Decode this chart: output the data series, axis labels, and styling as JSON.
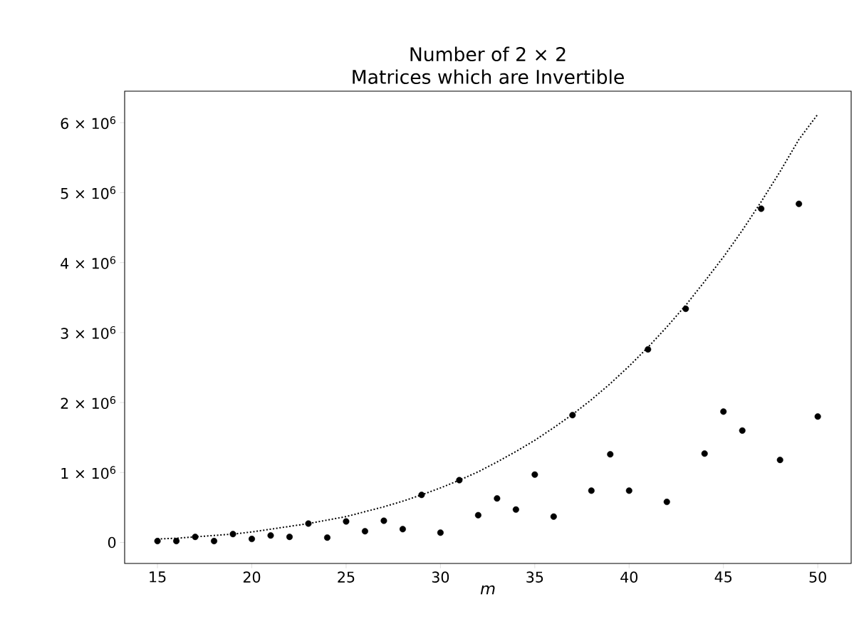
{
  "chart_data": {
    "type": "scatter",
    "title": "Number of 2 × 2",
    "subtitle": "Matrices which are Invertible",
    "xlabel": "*m*",
    "x": [
      15,
      16,
      17,
      18,
      19,
      20,
      21,
      22,
      23,
      24,
      25,
      26,
      27,
      28,
      29,
      30,
      31,
      32,
      33,
      34,
      35,
      36,
      37,
      38,
      39,
      40,
      41,
      42,
      43,
      44,
      45,
      46,
      47,
      48,
      49,
      50
    ],
    "series": [
      {
        "color": "#000000",
        "marker": "circle",
        "values": [
          20000,
          20000,
          80000,
          20000,
          120000,
          50000,
          100000,
          80000,
          270000,
          70000,
          300000,
          160000,
          310000,
          190000,
          680000,
          140000,
          890000,
          390000,
          630000,
          470000,
          970000,
          370000,
          1820000,
          740000,
          1260000,
          740000,
          2760000,
          580000,
          3340000,
          1270000,
          1870000,
          1600000,
          4770000,
          1180000,
          4840000,
          1800000
        ]
      },
      {
        "type": "line",
        "color": "#000000",
        "line_style": "dotted",
        "marker": "none",
        "values": [
          50000,
          60000,
          80000,
          100000,
          120000,
          150000,
          190000,
          230000,
          270000,
          320000,
          370000,
          440000,
          510000,
          590000,
          680000,
          780000,
          890000,
          1010000,
          1150000,
          1300000,
          1460000,
          1640000,
          1830000,
          2040000,
          2270000,
          2520000,
          2790000,
          3080000,
          3390000,
          3730000,
          4080000,
          4460000,
          4870000,
          5300000,
          5760000,
          6120000
        ]
      }
    ],
    "xlim": [
      13.26,
      51.77
    ],
    "ylim": [
      -300000,
      6450000
    ],
    "xticks": [
      15,
      20,
      25,
      30,
      35,
      40,
      45,
      50
    ],
    "yticks": [
      {
        "value": 0,
        "label": "0"
      },
      {
        "value": 1000000,
        "label": "1 × 10$^{6}$"
      },
      {
        "value": 2000000,
        "label": "2 × 10$^{6}$"
      },
      {
        "value": 3000000,
        "label": "3 × 10$^{6}$"
      },
      {
        "value": 4000000,
        "label": "4 × 10$^{6}$"
      },
      {
        "value": 5000000,
        "label": "5 × 10$^{6}$"
      },
      {
        "value": 6000000,
        "label": "6 × 10$^{6}$"
      }
    ]
  }
}
